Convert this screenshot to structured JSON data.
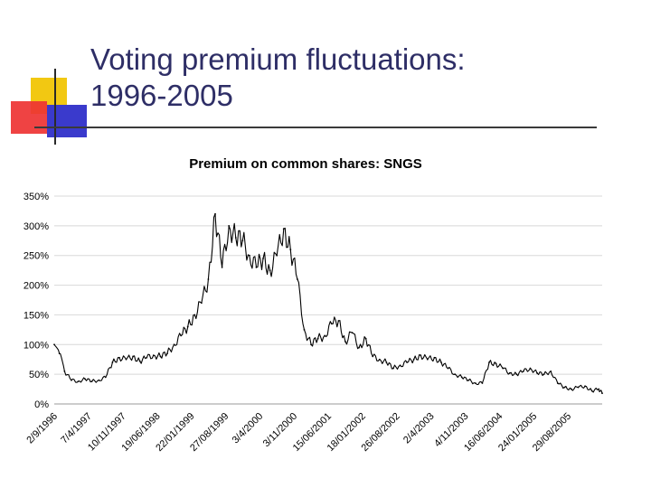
{
  "slide": {
    "title_line1": "Voting premium fluctuations:",
    "title_line2": "1996-2005"
  },
  "colors": {
    "title": "#2e2e66",
    "series": "#000000",
    "grid": "#d8d8d8",
    "deco_yellow": "#f2c812",
    "deco_red": "#ee3333",
    "deco_blue": "#3a3acc"
  },
  "chart_data": {
    "type": "line",
    "title": "Premium on common shares: SNGS",
    "xlabel": "",
    "ylabel": "",
    "ylim": [
      0,
      350
    ],
    "yticks": [
      "0%",
      "50%",
      "100%",
      "150%",
      "200%",
      "250%",
      "300%",
      "350%"
    ],
    "ytick_values": [
      0,
      50,
      100,
      150,
      200,
      250,
      300,
      350
    ],
    "categories": [
      "2/9/1996",
      "7/4/1997",
      "10/11/1997",
      "19/06/1998",
      "22/01/1999",
      "27/08/1999",
      "3/4/2000",
      "3/11/2000",
      "15/06/2001",
      "18/01/2002",
      "26/08/2002",
      "2/4/2003",
      "4/11/2003",
      "16/06/2004",
      "24/01/2005",
      "29/08/2005"
    ],
    "grid": true,
    "legend": "none",
    "series": [
      {
        "name": "Premium on common shares: SNGS",
        "x": [
          0,
          0.15,
          0.3,
          0.5,
          0.7,
          0.9,
          1.1,
          1.3,
          1.5,
          1.7,
          1.9,
          2.1,
          2.3,
          2.5,
          2.7,
          2.9,
          3.1,
          3.3,
          3.5,
          3.7,
          3.9,
          4.1,
          4.3,
          4.5,
          4.7,
          4.9,
          5.1,
          5.3,
          5.5,
          5.7,
          5.9,
          6.1,
          6.3,
          6.5,
          6.7,
          6.9,
          7.1,
          7.3,
          7.5,
          7.7,
          7.9,
          8.1,
          8.3,
          8.5,
          8.7,
          8.9,
          9.1,
          9.3,
          9.5,
          9.7,
          9.9,
          10.1,
          10.3,
          10.5,
          10.7,
          10.9,
          11.1,
          11.3,
          11.5,
          11.7,
          11.9,
          12.1,
          12.3,
          12.5,
          12.7,
          12.9,
          13.1,
          13.3,
          13.5,
          13.7,
          13.9,
          14.1,
          14.3,
          14.5,
          14.7,
          14.9,
          15.1,
          15.3,
          15.5,
          15.7,
          15.9,
          16.0
        ],
        "values": [
          100,
          85,
          55,
          40,
          38,
          42,
          38,
          40,
          45,
          70,
          78,
          75,
          80,
          72,
          78,
          82,
          80,
          85,
          100,
          115,
          130,
          150,
          170,
          210,
          320,
          230,
          300,
          280,
          275,
          250,
          230,
          245,
          225,
          250,
          295,
          260,
          210,
          125,
          100,
          110,
          115,
          135,
          140,
          105,
          120,
          95,
          110,
          80,
          75,
          70,
          60,
          65,
          70,
          75,
          82,
          75,
          78,
          70,
          60,
          50,
          45,
          40,
          35,
          35,
          70,
          68,
          60,
          52,
          50,
          55,
          60,
          52,
          50,
          55,
          35,
          28,
          25,
          28,
          30,
          22,
          25,
          18
        ]
      }
    ]
  }
}
